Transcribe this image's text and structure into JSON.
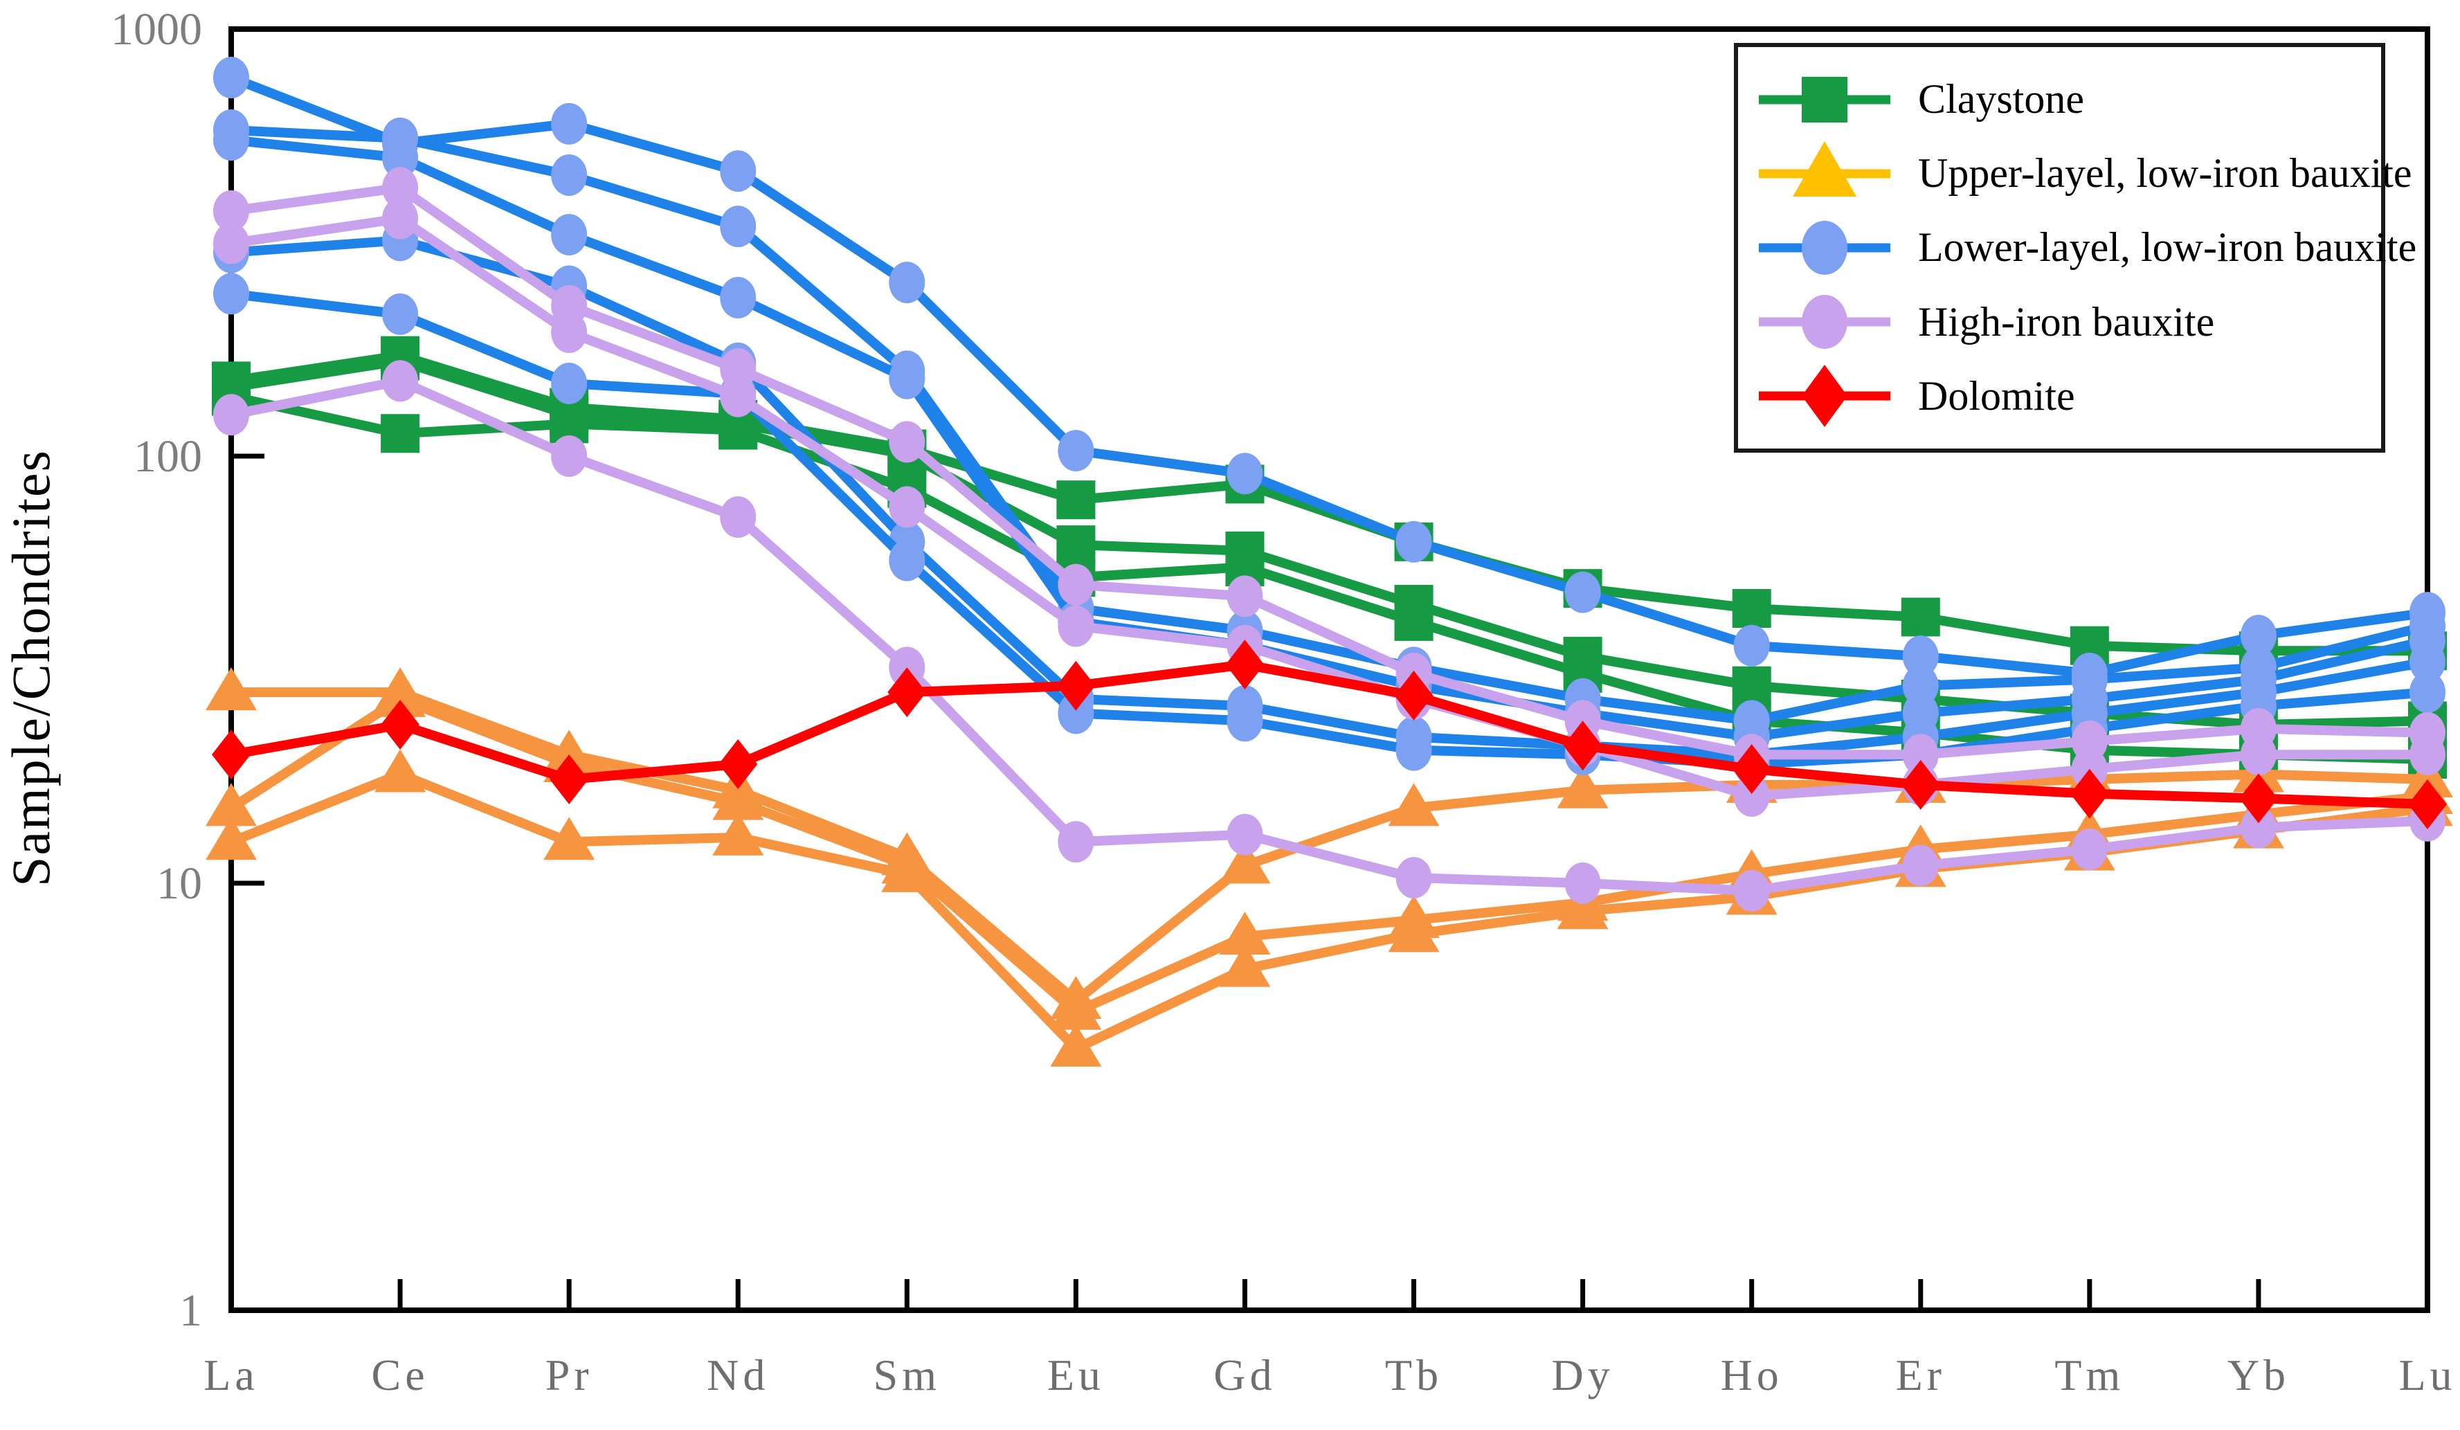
{
  "chart_data": {
    "type": "line",
    "title": "",
    "ylabel": "Sample/Chondrites",
    "xlabel": "",
    "x_categories": [
      "La",
      "Ce",
      "Pr",
      "Nd",
      "Sm",
      "Eu",
      "Gd",
      "Tb",
      "Dy",
      "Ho",
      "Er",
      "Tm",
      "Yb",
      "Lu"
    ],
    "y_scale": "log",
    "ylim": [
      1,
      1000
    ],
    "yticks": [
      "1000",
      "100",
      "10",
      "1"
    ],
    "ytick_values": [
      1000,
      100,
      10,
      1
    ],
    "grid": false,
    "legend_position": "top-right",
    "series": [
      {
        "name": "claystone-1",
        "group": "Claystone",
        "marker": "square",
        "line_color": "#169A44",
        "marker_color": "#169A44",
        "values": [
          150,
          172,
          130,
          122,
          104,
          79,
          86,
          63,
          49,
          44,
          42,
          36,
          35,
          35
        ]
      },
      {
        "name": "claystone-2",
        "group": "Claystone",
        "marker": "square",
        "line_color": "#169A44",
        "marker_color": "#169A44",
        "values": [
          145,
          167,
          125,
          119,
          101,
          62,
          60,
          45,
          34,
          29,
          27,
          25,
          23.5,
          24
        ]
      },
      {
        "name": "claystone-3",
        "group": "Claystone",
        "marker": "square",
        "line_color": "#169A44",
        "marker_color": "#169A44",
        "values": [
          138,
          113,
          119,
          115,
          84,
          52,
          55,
          41,
          31,
          24,
          22.5,
          20.5,
          20,
          19.5
        ]
      },
      {
        "name": "upper-bauxite-1",
        "group": "Upper-layel, low-iron bauxite",
        "marker": "triangle",
        "line_color": "#F79440",
        "marker_color": "#F79440",
        "values": [
          28,
          28,
          20,
          16.5,
          11.5,
          5.3,
          11,
          15,
          16.5,
          17,
          17,
          17.5,
          18,
          17.5
        ]
      },
      {
        "name": "upper-bauxite-2",
        "group": "Upper-layel, low-iron bauxite",
        "marker": "triangle",
        "line_color": "#F79440",
        "marker_color": "#F79440",
        "values": [
          15,
          27,
          19,
          15.5,
          11,
          5.0,
          7.5,
          8.2,
          9,
          10.5,
          12,
          13,
          14.5,
          16
        ]
      },
      {
        "name": "upper-bauxite-3",
        "group": "Upper-layel, low-iron bauxite",
        "marker": "triangle",
        "line_color": "#F79440",
        "marker_color": "#F79440",
        "values": [
          12.5,
          18,
          12.5,
          12.8,
          10.5,
          4.1,
          6.3,
          7.6,
          8.6,
          9.3,
          10.8,
          11.8,
          13.3,
          15
        ]
      },
      {
        "name": "lower-bauxite-1",
        "group": "Lower-layel, low-iron bauxite",
        "marker": "circle",
        "line_color": "#1E82E8",
        "marker_color": "#7CA0F2",
        "values": [
          770,
          540,
          600,
          465,
          255,
          103,
          91,
          63,
          48,
          36,
          34,
          31,
          38,
          43
        ]
      },
      {
        "name": "lower-bauxite-2",
        "group": "Lower-layel, low-iron bauxite",
        "marker": "circle",
        "line_color": "#1E82E8",
        "marker_color": "#7CA0F2",
        "values": [
          580,
          555,
          455,
          345,
          158,
          44,
          39,
          32,
          27,
          24,
          29,
          30,
          32,
          40
        ]
      },
      {
        "name": "lower-bauxite-3",
        "group": "Lower-layel, low-iron bauxite",
        "marker": "circle",
        "line_color": "#1E82E8",
        "marker_color": "#7CA0F2",
        "values": [
          550,
          500,
          330,
          235,
          152,
          41,
          36,
          29,
          25,
          22,
          25,
          27,
          30,
          37
        ]
      },
      {
        "name": "lower-bauxite-4",
        "group": "Lower-layel, low-iron bauxite",
        "marker": "circle",
        "line_color": "#1E82E8",
        "marker_color": "#7CA0F2",
        "values": [
          300,
          320,
          250,
          165,
          63,
          27,
          26,
          22,
          21,
          20,
          22,
          25,
          28,
          33
        ]
      },
      {
        "name": "lower-bauxite-5",
        "group": "Lower-layel, low-iron bauxite",
        "marker": "circle",
        "line_color": "#1E82E8",
        "marker_color": "#7CA0F2",
        "values": [
          240,
          215,
          148,
          140,
          57,
          25,
          24,
          20.5,
          20,
          19,
          20,
          23,
          26,
          28
        ]
      },
      {
        "name": "high-iron-bauxite-1",
        "group": "High-iron bauxite",
        "marker": "circle",
        "line_color": "#C9A2EE",
        "marker_color": "#C9A2EE",
        "values": [
          375,
          425,
          225,
          160,
          108,
          50,
          47,
          31,
          24,
          20,
          20,
          21.5,
          23,
          22.5
        ]
      },
      {
        "name": "high-iron-bauxite-2",
        "group": "High-iron bauxite",
        "marker": "circle",
        "line_color": "#C9A2EE",
        "marker_color": "#C9A2EE",
        "values": [
          315,
          360,
          195,
          138,
          76,
          40,
          36,
          27,
          21,
          16,
          17,
          18.5,
          20,
          20
        ]
      },
      {
        "name": "high-iron-bauxite-3",
        "group": "High-iron bauxite",
        "marker": "circle",
        "line_color": "#C9A2EE",
        "marker_color": "#C9A2EE",
        "values": [
          125,
          150,
          100,
          72,
          32,
          12.5,
          13,
          10.3,
          10,
          9.6,
          11,
          12,
          13.5,
          14
        ]
      },
      {
        "name": "dolomite-1",
        "group": "Dolomite",
        "marker": "diamond",
        "line_color": "#FE0000",
        "marker_color": "#FE0000",
        "values": [
          20,
          23.5,
          17.5,
          19,
          28,
          29,
          32.5,
          27.5,
          21,
          18.5,
          17,
          16.2,
          15.8,
          15.3
        ]
      }
    ],
    "legend": [
      {
        "label": "Claystone",
        "marker": "square",
        "marker_color": "#169A44",
        "line_color": "#169A44"
      },
      {
        "label": "Upper-layel, low-iron bauxite",
        "marker": "triangle",
        "marker_color": "#FFC000",
        "line_color": "#FFC000"
      },
      {
        "label": "Lower-layel, low-iron bauxite",
        "marker": "circle",
        "marker_color": "#7CA0F2",
        "line_color": "#1E82E8"
      },
      {
        "label": "High-iron bauxite",
        "marker": "circle",
        "marker_color": "#C9A2EE",
        "line_color": "#C9A2EE"
      },
      {
        "label": "Dolomite",
        "marker": "diamond",
        "marker_color": "#FE0000",
        "line_color": "#FE0000"
      }
    ],
    "axis_colors": {
      "frame": "#000000",
      "tick_label": "#7d7d7d",
      "x_label": "#6e6e6e"
    }
  }
}
